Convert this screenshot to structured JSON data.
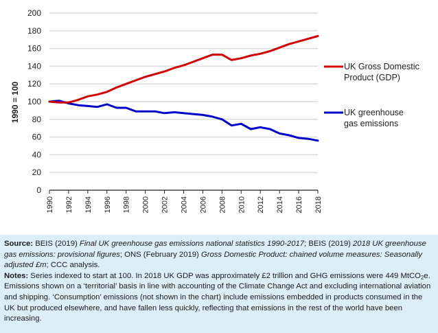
{
  "chart_data": {
    "type": "line",
    "title": "",
    "xlabel": "",
    "ylabel": "1990 = 100",
    "ylim": [
      0,
      200
    ],
    "yticks": [
      0,
      20,
      40,
      60,
      80,
      100,
      120,
      140,
      160,
      180,
      200
    ],
    "xlim": [
      1990,
      2018
    ],
    "xticks": [
      1990,
      1992,
      1994,
      1996,
      1998,
      2000,
      2002,
      2004,
      2006,
      2008,
      2010,
      2012,
      2014,
      2016,
      2018
    ],
    "grid": true,
    "legend_position": "right",
    "x": [
      1990,
      1991,
      1992,
      1993,
      1994,
      1995,
      1996,
      1997,
      1998,
      1999,
      2000,
      2001,
      2002,
      2003,
      2004,
      2005,
      2006,
      2007,
      2008,
      2009,
      2010,
      2011,
      2012,
      2013,
      2014,
      2015,
      2016,
      2017,
      2018
    ],
    "series": [
      {
        "name": "UK Gross Domestic Product (GDP)",
        "legend_lines": [
          "UK Gross Domestic",
          "Product (GDP)"
        ],
        "color": "#d40000",
        "values": [
          100,
          99,
          99,
          102,
          106,
          108,
          111,
          116,
          120,
          124,
          128,
          131,
          134,
          138,
          141,
          145,
          149,
          153,
          153,
          147,
          149,
          152,
          154,
          157,
          161,
          165,
          168,
          171,
          174
        ]
      },
      {
        "name": "UK greenhouse gas emissions",
        "legend_lines": [
          "UK greenhouse",
          "gas emissions"
        ],
        "color": "#0000cc",
        "values": [
          100,
          101,
          98,
          96,
          95,
          94,
          97,
          93,
          93,
          89,
          89,
          89,
          87,
          88,
          87,
          86,
          85,
          83,
          80,
          73,
          75,
          69,
          71,
          69,
          64,
          62,
          59,
          58,
          56
        ]
      }
    ]
  },
  "caption": {
    "source_label": "Source:",
    "source_parts": [
      {
        "text": " BEIS (2019) ",
        "italic": false
      },
      {
        "text": "Final UK greenhouse gas emissions national statistics 1990-2017",
        "italic": true
      },
      {
        "text": "; BEIS (2019) ",
        "italic": false
      },
      {
        "text": "2018 UK greenhouse gas emissions: provisional figures",
        "italic": true
      },
      {
        "text": "; ONS (February 2019) ",
        "italic": false
      },
      {
        "text": "Gross Domestic Product: chained volume measures: Seasonally adjusted £m",
        "italic": true
      },
      {
        "text": "; CCC analysis.",
        "italic": false
      }
    ],
    "notes_label": "Notes:",
    "notes_text_1": " Series indexed to start at 100. In 2018 UK GDP was approximately £2 trillion and GHG emissions were 449 MtCO",
    "notes_sub": "2",
    "notes_text_2": "e. Emissions shown on a ‘territorial’ basis in line with accounting of the Climate Change Act and excluding international aviation and shipping. ‘Consumption’ emissions (not shown in the chart) include emissions embedded in products consumed in the UK but produced elsewhere, and have fallen less quickly, reflecting that emissions in the rest of the world have been increasing."
  }
}
